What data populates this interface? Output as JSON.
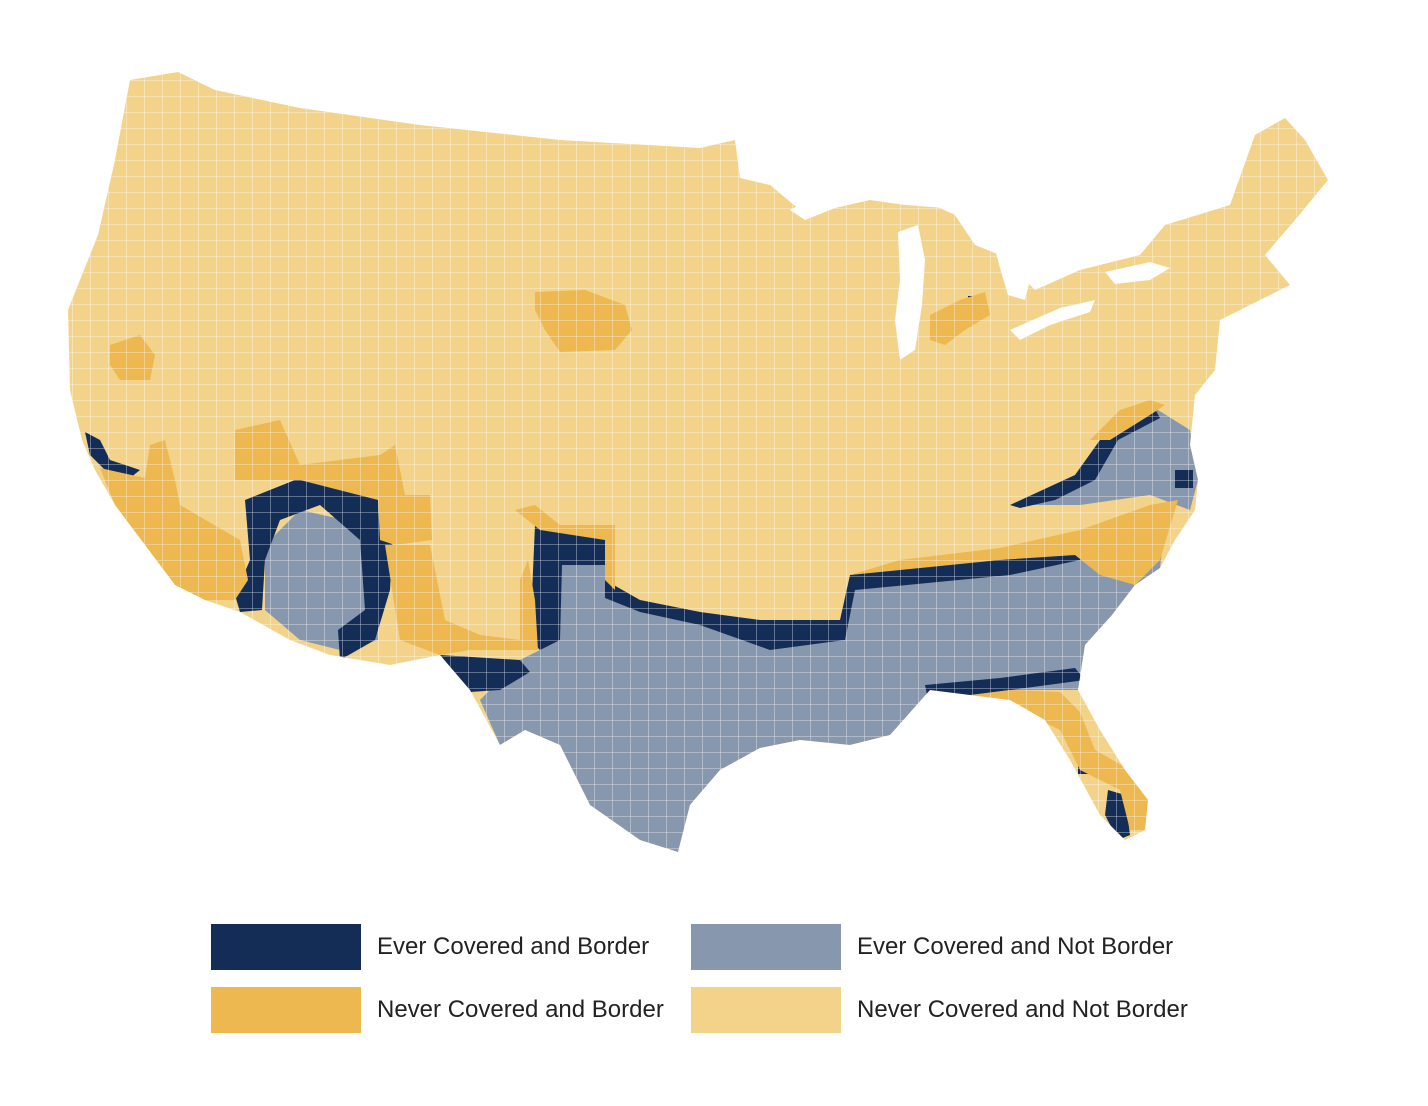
{
  "map": {
    "region": "contiguous-united-states",
    "unit": "county",
    "colors": {
      "ever_covered_border": "#142d57",
      "ever_covered_not_border": "#8797ad",
      "never_covered_border": "#edb84f",
      "never_covered_not_border": "#f3d389",
      "county_lines": "#ffffff"
    }
  },
  "legend": {
    "items": [
      {
        "key": "ever_covered_border",
        "label": "Ever Covered and Border",
        "color": "#142d57"
      },
      {
        "key": "ever_covered_not_border",
        "label": "Ever Covered and Not Border",
        "color": "#8797ad"
      },
      {
        "key": "never_covered_border",
        "label": "Never Covered and Border",
        "color": "#edb84f"
      },
      {
        "key": "never_covered_not_border",
        "label": "Never Covered and Not Border",
        "color": "#f3d389"
      }
    ]
  }
}
